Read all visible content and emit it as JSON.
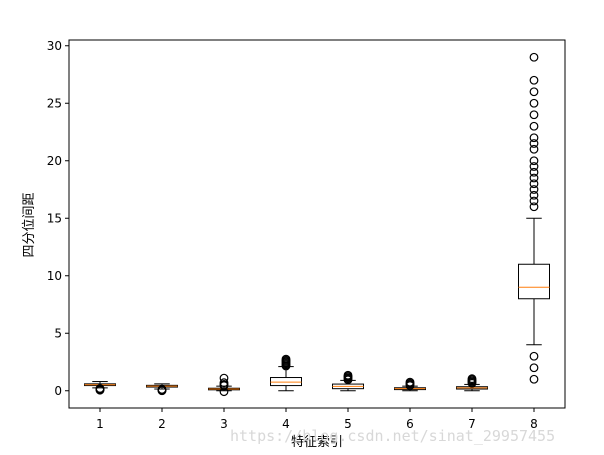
{
  "chart_data": {
    "type": "boxplot",
    "title": "",
    "xlabel": "特征索引",
    "ylabel": "四分位间距",
    "ylim": [
      -1.5,
      30.5
    ],
    "yticks": [
      0,
      5,
      10,
      15,
      20,
      25,
      30
    ],
    "categories": [
      "1",
      "2",
      "3",
      "4",
      "5",
      "6",
      "7",
      "8"
    ],
    "colors": {
      "box": "#000000",
      "median": "#ff7f0e",
      "flier": "#000000"
    },
    "boxes": [
      {
        "label": "1",
        "whislo": 0.25,
        "q1": 0.45,
        "med": 0.52,
        "q3": 0.6,
        "whishi": 0.8,
        "fliers": [
          0.05,
          0.08,
          0.12,
          0.16,
          0.2
        ]
      },
      {
        "label": "2",
        "whislo": 0.15,
        "q1": 0.32,
        "med": 0.4,
        "q3": 0.47,
        "whishi": 0.6,
        "fliers": [
          0.0,
          0.03,
          0.06,
          0.09,
          0.12
        ]
      },
      {
        "label": "3",
        "whislo": 0.0,
        "q1": 0.08,
        "med": 0.15,
        "q3": 0.22,
        "whishi": 0.4,
        "fliers": [
          -0.08,
          0.45,
          0.55,
          0.7,
          1.1
        ]
      },
      {
        "label": "4",
        "whislo": 0.0,
        "q1": 0.45,
        "med": 0.75,
        "q3": 1.15,
        "whishi": 2.1,
        "fliers": [
          2.15,
          2.25,
          2.35,
          2.45,
          2.55,
          2.65,
          2.75
        ]
      },
      {
        "label": "5",
        "whislo": 0.0,
        "q1": 0.18,
        "med": 0.38,
        "q3": 0.58,
        "whishi": 0.9,
        "fliers": [
          0.95,
          1.05,
          1.15,
          1.25,
          1.35
        ]
      },
      {
        "label": "6",
        "whislo": 0.0,
        "q1": 0.1,
        "med": 0.18,
        "q3": 0.26,
        "whishi": 0.4,
        "fliers": [
          0.45,
          0.55,
          0.65,
          0.75
        ]
      },
      {
        "label": "7",
        "whislo": 0.0,
        "q1": 0.15,
        "med": 0.25,
        "q3": 0.35,
        "whishi": 0.55,
        "fliers": [
          0.65,
          0.75,
          0.85,
          0.95,
          1.05
        ]
      },
      {
        "label": "8",
        "whislo": 4.0,
        "q1": 8.0,
        "med": 9.0,
        "q3": 11.0,
        "whishi": 15.0,
        "fliers": [
          1.0,
          2.0,
          3.0,
          16.0,
          16.5,
          17.0,
          17.5,
          18.0,
          18.5,
          19.0,
          19.5,
          20.0,
          21.0,
          21.5,
          22.0,
          23.0,
          24.0,
          25.0,
          26.0,
          27.0,
          29.0
        ]
      }
    ]
  },
  "watermark": "https://blog.csdn.net/sinat_29957455"
}
